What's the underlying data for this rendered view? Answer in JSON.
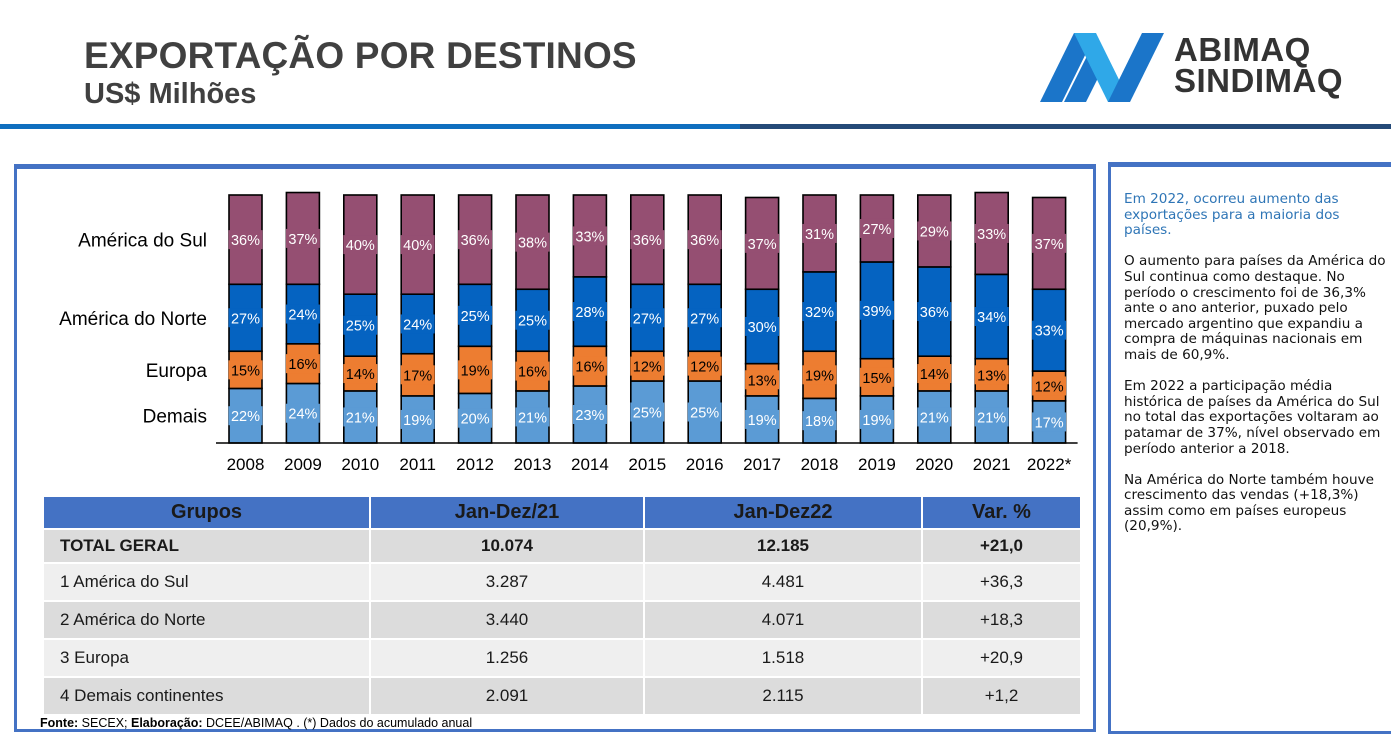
{
  "header": {
    "title": "EXPORTAÇÃO POR DESTINOS",
    "subtitle": "US$ Milhões",
    "logo_line1": "ABIMAQ",
    "logo_line2": "SINDIMAQ"
  },
  "colors": {
    "america_do_sul": "#954f72",
    "america_do_norte": "#0563c1",
    "europa": "#ed7d31",
    "demais": "#5b9bd5",
    "table_header": "#4472c4",
    "panel_border": "#4472c4",
    "divider_blue": "#0f6fbf",
    "divider_navy": "#254a78",
    "lead_text": "#2e75b6"
  },
  "chart_data": {
    "type": "bar",
    "stacked": true,
    "normalized": "percent",
    "title": "",
    "xlabel": "",
    "ylabel": "",
    "ylim": [
      0,
      100
    ],
    "grid": false,
    "legend": "left-row-labels",
    "categories": [
      "2008",
      "2009",
      "2010",
      "2011",
      "2012",
      "2013",
      "2014",
      "2015",
      "2016",
      "2017",
      "2018",
      "2019",
      "2020",
      "2021",
      "2022*"
    ],
    "series": [
      {
        "name": "Demais",
        "color": "#5b9bd5",
        "label_color": "#ffffff",
        "values": [
          22,
          24,
          21,
          19,
          20,
          21,
          23,
          25,
          25,
          19,
          18,
          19,
          21,
          21,
          17
        ]
      },
      {
        "name": "Europa",
        "color": "#ed7d31",
        "label_color": "#000000",
        "values": [
          15,
          16,
          14,
          17,
          19,
          16,
          16,
          12,
          12,
          13,
          19,
          15,
          14,
          13,
          12
        ]
      },
      {
        "name": "América do Norte",
        "color": "#0563c1",
        "label_color": "#ffffff",
        "values": [
          27,
          24,
          25,
          24,
          25,
          25,
          28,
          27,
          27,
          30,
          32,
          39,
          36,
          34,
          33
        ]
      },
      {
        "name": "América do Sul",
        "color": "#954f72",
        "label_color": "#ffffff",
        "values": [
          36,
          37,
          40,
          40,
          36,
          38,
          33,
          36,
          36,
          37,
          31,
          27,
          29,
          33,
          37
        ]
      }
    ],
    "data_label_suffix": "%"
  },
  "table": {
    "headers": [
      "Grupos",
      "Jan-Dez/21",
      "Jan-Dez22",
      "Var. %"
    ],
    "rows": [
      {
        "grupo": "TOTAL GERAL",
        "v21": "10.074",
        "v22": "12.185",
        "var": "+21,0"
      },
      {
        "grupo": "1 América do Sul",
        "v21": "3.287",
        "v22": "4.481",
        "var": "+36,3"
      },
      {
        "grupo": "2 América do Norte",
        "v21": "3.440",
        "v22": "4.071",
        "var": "+18,3"
      },
      {
        "grupo": "3 Europa",
        "v21": "1.256",
        "v22": "1.518",
        "var": "+20,9"
      },
      {
        "grupo": "4 Demais continentes",
        "v21": "2.091",
        "v22": "2.115",
        "var": "+1,2"
      }
    ]
  },
  "source": {
    "fonte_label": "Fonte:",
    "fonte_value": " SECEX; ",
    "elab_label": "Elaboração:",
    "elab_value": " DCEE/ABIMAQ . (*) Dados do acumulado anual"
  },
  "notes": {
    "lead": "Em 2022, ocorreu aumento das exportações para a maioria dos países.",
    "p1": "O aumento para países da América do Sul continua como destaque. No período o crescimento foi de 36,3% ante o ano anterior, puxado pelo mercado argentino que expandiu a compra de máquinas nacionais em mais de 60,9%.",
    "p2": "Em 2022 a participação média histórica de países da América do Sul no total das exportações voltaram ao patamar de 37%, nível observado em período anterior a 2018.",
    "p3": "Na América do Norte também houve crescimento das vendas (+18,3%) assim como em países europeus (20,9%)."
  }
}
